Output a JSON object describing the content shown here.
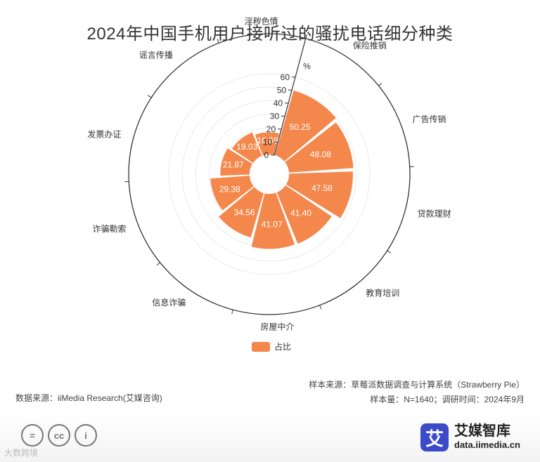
{
  "title": "2024年中国手机用户接听过的骚扰电话细分种类",
  "chart_data": {
    "type": "polar-bar",
    "title": "2024年中国手机用户接听过的骚扰电话细分种类",
    "radial_axis": {
      "min": 0,
      "max": 60,
      "ticks": [
        0,
        10,
        20,
        30,
        40,
        50,
        60
      ],
      "unit": "%"
    },
    "categories": [
      "保险推销",
      "广告传销",
      "贷款理财",
      "教育培训",
      "房屋中介",
      "信息诈骗",
      "诈骗勒索",
      "发票办证",
      "谣言传播",
      "淫秽色情"
    ],
    "series": [
      {
        "name": "占比",
        "values": [
          50.25,
          48.08,
          47.58,
          41.4,
          41.07,
          34.56,
          29.38,
          21.87,
          19.03,
          16.69
        ],
        "color": "#f4874b"
      }
    ],
    "value_labels": [
      "50.25",
      "48.08",
      "47.58",
      "41.40",
      "41.07",
      "34.56",
      "29.38",
      "21.87",
      "19.03",
      "16.69"
    ],
    "legend": {
      "position": "bottom",
      "label": "占比"
    }
  },
  "footer": {
    "source": "数据来源：iiMedia Research(艾媒咨询)",
    "sample_source": "样本来源：草莓派数据调查与计算系统（Strawberry Pie）",
    "sample_info": "样本量：N=1640；调研时间：2024年9月"
  },
  "brand": {
    "logo_char": "艾",
    "name": "艾媒智库",
    "site": "data.iimedia.cn"
  },
  "license_icons": [
    "=",
    "cc",
    "i"
  ],
  "watermark": "大数跨境"
}
